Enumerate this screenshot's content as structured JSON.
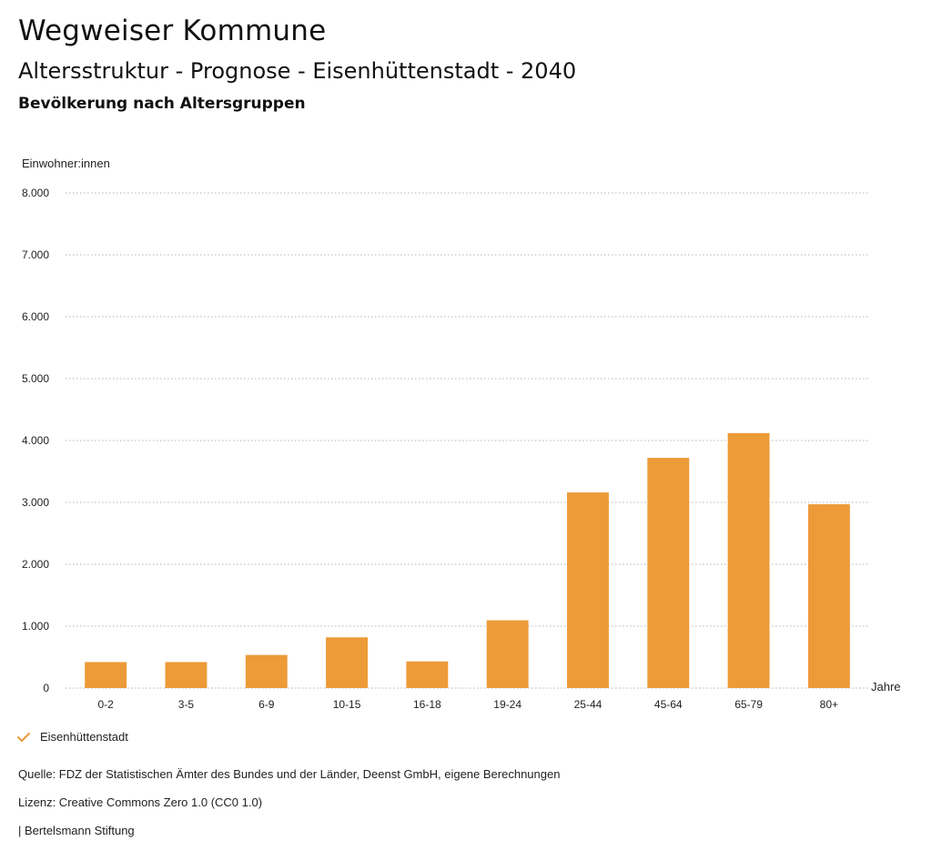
{
  "header": {
    "title": "Wegweiser Kommune",
    "subtitle": "Altersstruktur - Prognose - Eisenhüttenstadt - 2040",
    "section": "Bevölkerung nach Altersgruppen"
  },
  "chart_data": {
    "type": "bar",
    "ylabel": "Einwohner:innen",
    "xlabel": "Jahre",
    "ylim": [
      0,
      8000
    ],
    "yticks": [
      0,
      1000,
      2000,
      3000,
      4000,
      5000,
      6000,
      7000,
      8000
    ],
    "ytick_labels": [
      "0",
      "1.000",
      "2.000",
      "3.000",
      "4.000",
      "5.000",
      "6.000",
      "7.000",
      "8.000"
    ],
    "grid": true,
    "categories": [
      "0-2",
      "3-5",
      "6-9",
      "10-15",
      "16-18",
      "19-24",
      "25-44",
      "45-64",
      "65-79",
      "80+"
    ],
    "series": [
      {
        "name": "Eisenhüttenstadt",
        "color": "#ED9A38",
        "values": [
          420,
          420,
          535,
          820,
          430,
          1095,
          3160,
          3720,
          4120,
          2970
        ]
      }
    ]
  },
  "legend": {
    "label": "Eisenhüttenstadt",
    "icon": "check-icon",
    "color": "#ED9A38"
  },
  "footer": {
    "source": "Quelle: FDZ der Statistischen Ämter des Bundes und der Länder, Deenst GmbH, eigene Berechnungen",
    "license": "Lizenz: Creative Commons Zero 1.0 (CC0 1.0)",
    "publisher": "| Bertelsmann Stiftung"
  }
}
